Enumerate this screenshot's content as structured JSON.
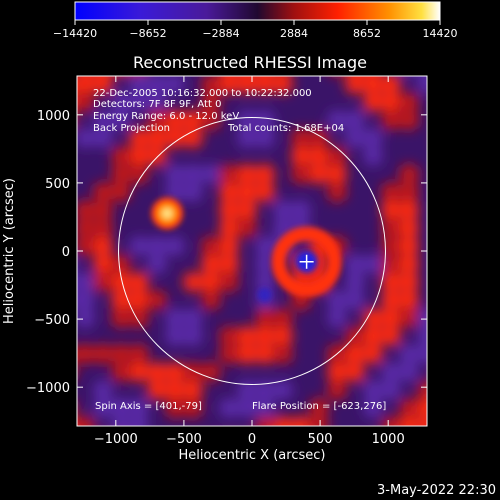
{
  "chart_data": {
    "type": "heatmap",
    "title": "Reconstructed RHESSI Image",
    "xlabel": "Heliocentric X (arcsec)",
    "ylabel": "Heliocentric Y (arcsec)",
    "xlim": [
      -1285,
      1285
    ],
    "ylim": [
      -1285,
      1285
    ],
    "xticks": [
      -1000,
      -500,
      0,
      500,
      1000
    ],
    "yticks": [
      1000,
      500,
      0,
      -500,
      -1000
    ],
    "xtick_labels": [
      "−1000",
      "−500",
      "0",
      "500",
      "1000"
    ],
    "ytick_labels": [
      "1000",
      "500",
      "0",
      "−500",
      "−1000"
    ],
    "colorbar": {
      "range": [
        -14420,
        14420
      ],
      "ticks": [
        -14420,
        -8652,
        -2884,
        2884,
        8652,
        14420
      ],
      "tick_labels": [
        "−14420",
        "−8652",
        "−2884",
        "2884",
        "8652",
        "14420"
      ],
      "colormap": "blue-purple-black-red-orange-yellow-white"
    },
    "annotations": {
      "time": "22-Dec-2005 10:16:32.000 to 10:22:32.000",
      "detectors": "Detectors: 7F 8F 9F, Att 0",
      "energy": "Energy Range: 6.0 - 12.0 keV",
      "method": "Back Projection",
      "counts": "Total counts: 1.68E+04",
      "spin_axis": "Spin Axis = [401,-79]",
      "flare_position": "Flare Position = [-623,276]"
    },
    "sources": [
      {
        "x": -623,
        "y": 276,
        "value": 14420
      },
      {
        "x": 401,
        "y": -79,
        "value": -14420
      }
    ],
    "solar_limb_radius": 980,
    "crosshair": {
      "x": 401,
      "y": -79
    }
  },
  "timestamp": "3-May-2022 22:30"
}
